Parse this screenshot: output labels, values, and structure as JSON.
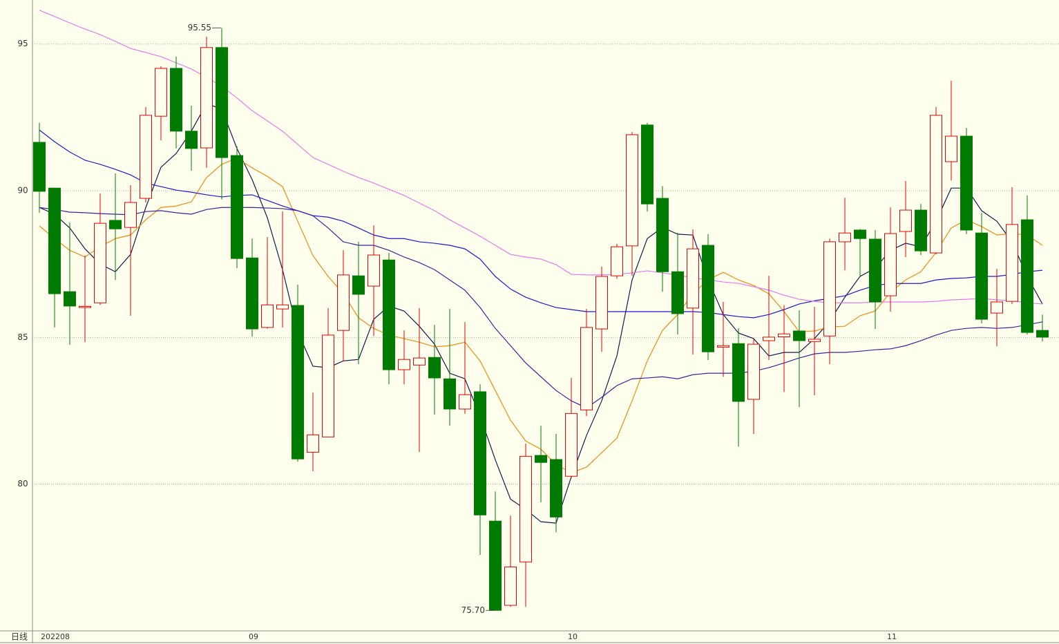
{
  "chart_data": {
    "type": "candlestick",
    "period_label": "日线",
    "categories": [
      "202208",
      null,
      null,
      null,
      null,
      null,
      null,
      null,
      null,
      null,
      null,
      null,
      null,
      null,
      "09",
      null,
      null,
      null,
      null,
      null,
      null,
      null,
      null,
      null,
      null,
      null,
      null,
      null,
      null,
      null,
      null,
      null,
      null,
      null,
      null,
      "10",
      null,
      null,
      null,
      null,
      null,
      null,
      null,
      null,
      null,
      null,
      null,
      null,
      null,
      null,
      null,
      null,
      null,
      null,
      null,
      null,
      "11",
      null,
      null,
      null,
      null,
      null,
      null,
      null,
      null,
      null,
      null
    ],
    "open": [
      91.65,
      90.09,
      86.56,
      86.02,
      86.18,
      88.99,
      88.75,
      89.74,
      92.54,
      94.17,
      92.03,
      91.46,
      94.88,
      91.2,
      87.71,
      85.34,
      85.97,
      86.09,
      81.09,
      81.61,
      85.24,
      87.1,
      86.75,
      87.64,
      83.9,
      84.06,
      84.32,
      83.59,
      82.56,
      83.15,
      78.74,
      75.87,
      77.35,
      80.98,
      80.84,
      80.27,
      82.53,
      85.29,
      87.1,
      88.12,
      92.24,
      89.74,
      87.24,
      86.0,
      88.14,
      84.67,
      84.79,
      82.89,
      84.89,
      85.02,
      85.22,
      84.86,
      85.05,
      88.26,
      88.66,
      88.35,
      86.42,
      88.61,
      89.34,
      87.88,
      90.99,
      91.86,
      88.56,
      85.83,
      86.23,
      89.01,
      85.24
    ],
    "high": [
      92.31,
      90.1,
      88.92,
      87.79,
      89.91,
      90.59,
      90.19,
      92.85,
      94.24,
      94.57,
      92.9,
      95.25,
      95.55,
      91.51,
      88.37,
      88.42,
      89.29,
      86.8,
      83.12,
      86.0,
      87.97,
      88.26,
      88.82,
      87.88,
      85.24,
      86.0,
      85.43,
      85.97,
      85.52,
      83.4,
      79.75,
      78.93,
      81.38,
      81.99,
      81.71,
      83.62,
      85.97,
      87.41,
      88.19,
      92.0,
      92.31,
      90.16,
      88.56,
      88.68,
      88.52,
      86.21,
      85.31,
      84.96,
      87.1,
      86.1,
      85.92,
      86.04,
      88.37,
      89.76,
      88.7,
      88.66,
      89.43,
      90.33,
      89.55,
      92.85,
      93.75,
      92.14,
      89.25,
      87.34,
      90.12,
      89.84,
      85.78
    ],
    "low": [
      89.25,
      85.34,
      84.75,
      84.84,
      86.11,
      86.96,
      85.74,
      89.6,
      91.72,
      91.44,
      90.68,
      90.78,
      89.7,
      87.36,
      85.03,
      85.3,
      85.34,
      80.77,
      80.44,
      81.6,
      84.2,
      84.09,
      85.05,
      83.4,
      83.4,
      81.1,
      82.37,
      81.99,
      82.4,
      77.59,
      75.7,
      75.82,
      75.82,
      79.38,
      78.36,
      80.2,
      82.32,
      84.51,
      87.0,
      87.1,
      89.29,
      86.56,
      85.1,
      84.42,
      84.23,
      83.66,
      81.28,
      81.71,
      84.23,
      83.14,
      82.63,
      83.03,
      84.09,
      87.29,
      87.06,
      85.29,
      85.88,
      87.74,
      87.81,
      87.83,
      90.35,
      88.52,
      85.48,
      84.7,
      86.14,
      85.1,
      84.86
    ],
    "close": [
      89.98,
      86.49,
      86.07,
      86.06,
      88.89,
      88.7,
      89.6,
      92.57,
      94.17,
      92.03,
      91.44,
      94.88,
      91.13,
      87.69,
      85.29,
      86.11,
      86.11,
      80.86,
      81.68,
      85.08,
      87.13,
      86.47,
      87.81,
      83.9,
      84.25,
      84.3,
      83.62,
      82.56,
      83.05,
      78.95,
      75.7,
      77.18,
      80.95,
      80.74,
      78.88,
      82.41,
      85.34,
      87.08,
      88.09,
      91.91,
      89.55,
      87.24,
      85.81,
      88.02,
      84.51,
      84.72,
      82.82,
      84.77,
      85.01,
      85.12,
      84.89,
      84.94,
      88.26,
      88.56,
      88.37,
      86.21,
      88.54,
      89.34,
      87.95,
      92.57,
      91.86,
      88.66,
      85.62,
      86.21,
      88.85,
      85.17,
      85.01
    ],
    "up_color": "#dd0000",
    "down_color": "#007a00",
    "lines": [
      {
        "color": "#101850",
        "values": [
          89.43,
          89.2,
          88.73,
          88.02,
          87.5,
          87.24,
          87.83,
          89.43,
          90.8,
          91.27,
          92.03,
          92.97,
          92.78,
          91.44,
          90.38,
          89.08,
          87.31,
          85.19,
          84.02,
          83.97,
          84.2,
          84.25,
          85.62,
          86.07,
          85.9,
          85.38,
          84.77,
          83.78,
          83.59,
          82.32,
          80.83,
          79.49,
          79.14,
          78.72,
          78.67,
          80.25,
          81.66,
          82.84,
          84.37,
          86.96,
          88.37,
          88.75,
          88.52,
          88.49,
          86.96,
          85.78,
          85.15,
          84.96,
          84.37,
          84.49,
          84.49,
          84.96,
          85.55,
          86.37,
          87.08,
          87.36,
          87.97,
          88.21,
          88.09,
          88.96,
          90.09,
          90.09,
          89.32,
          88.96,
          88.26,
          87.08,
          86.14
        ]
      },
      {
        "color": "#f08a10",
        "values": [
          88.8,
          88.37,
          87.97,
          87.74,
          88.09,
          88.37,
          88.49,
          89.01,
          89.43,
          89.48,
          89.62,
          90.45,
          90.9,
          91.11,
          90.78,
          90.49,
          90.14,
          88.96,
          87.79,
          87.08,
          86.49,
          85.67,
          85.31,
          85.08,
          84.96,
          84.84,
          84.68,
          84.72,
          84.84,
          84.2,
          83.19,
          82.18,
          81.47,
          81.19,
          80.67,
          80.39,
          80.58,
          81.07,
          81.57,
          82.84,
          84.2,
          85.24,
          85.78,
          86.49,
          86.96,
          87.22,
          86.96,
          86.77,
          86.49,
          85.88,
          85.19,
          85.22,
          85.36,
          85.38,
          85.74,
          85.9,
          86.54,
          86.96,
          87.24,
          87.9,
          88.73,
          89.01,
          88.78,
          88.49,
          88.54,
          88.49,
          88.14
        ]
      },
      {
        "color": "#1818d8",
        "values": [
          92.07,
          91.67,
          91.32,
          91.04,
          90.9,
          90.73,
          90.54,
          90.26,
          90.14,
          90.02,
          89.95,
          89.86,
          89.79,
          89.84,
          89.86,
          89.67,
          89.48,
          89.32,
          89.15,
          89.1,
          88.96,
          88.73,
          88.49,
          88.37,
          88.37,
          88.26,
          88.21,
          88.14,
          88.02,
          87.67,
          87.08,
          86.65,
          86.37,
          86.18,
          86.02,
          85.95,
          85.88,
          85.88,
          85.88,
          85.88,
          85.88,
          85.88,
          85.88,
          85.88,
          85.85,
          85.78,
          85.71,
          85.67,
          85.78,
          85.95,
          86.14,
          86.25,
          86.33,
          86.42,
          86.61,
          86.77,
          86.84,
          86.84,
          86.84,
          86.96,
          87.01,
          87.03,
          87.08,
          87.08,
          87.15,
          87.24,
          87.29
        ]
      },
      {
        "color": "#3a20a0",
        "values": [
          89.43,
          89.36,
          89.27,
          89.25,
          89.22,
          89.2,
          89.18,
          89.29,
          89.32,
          89.25,
          89.2,
          89.36,
          89.43,
          89.43,
          89.43,
          89.41,
          89.39,
          89.32,
          89.15,
          88.73,
          88.26,
          88.14,
          88.14,
          87.97,
          87.74,
          87.55,
          87.31,
          86.96,
          86.61,
          86.02,
          85.31,
          84.72,
          84.13,
          83.66,
          83.19,
          82.84,
          82.6,
          82.96,
          83.36,
          83.59,
          83.62,
          83.66,
          83.59,
          83.73,
          83.78,
          83.78,
          83.78,
          83.85,
          83.97,
          84.13,
          84.3,
          84.44,
          84.49,
          84.49,
          84.53,
          84.58,
          84.61,
          84.72,
          84.89,
          85.08,
          85.24,
          85.31,
          85.34,
          85.31,
          85.34,
          85.43,
          85.53
        ]
      },
      {
        "color": "#e878e8",
        "values": [
          96.15,
          95.94,
          95.72,
          95.51,
          95.32,
          95.09,
          94.85,
          94.71,
          94.57,
          94.36,
          94.15,
          93.86,
          93.56,
          93.16,
          92.73,
          92.38,
          92.03,
          91.58,
          91.13,
          90.9,
          90.66,
          90.45,
          90.26,
          90.05,
          89.84,
          89.58,
          89.32,
          89.01,
          88.73,
          88.45,
          88.14,
          87.83,
          87.74,
          87.67,
          87.48,
          87.15,
          87.13,
          87.13,
          87.15,
          87.2,
          87.27,
          87.2,
          87.13,
          87.03,
          86.96,
          86.89,
          86.84,
          86.73,
          86.61,
          86.44,
          86.3,
          86.23,
          86.18,
          86.18,
          86.18,
          86.21,
          86.21,
          86.21,
          86.21,
          86.23,
          86.28,
          86.3,
          86.33,
          86.28,
          86.25,
          86.18,
          86.14
        ]
      }
    ],
    "annotations": [
      "95.55",
      "75.70"
    ],
    "ylim": [
      75,
      96.5
    ],
    "yticks": [
      80,
      85,
      90,
      95
    ],
    "grid": true
  }
}
